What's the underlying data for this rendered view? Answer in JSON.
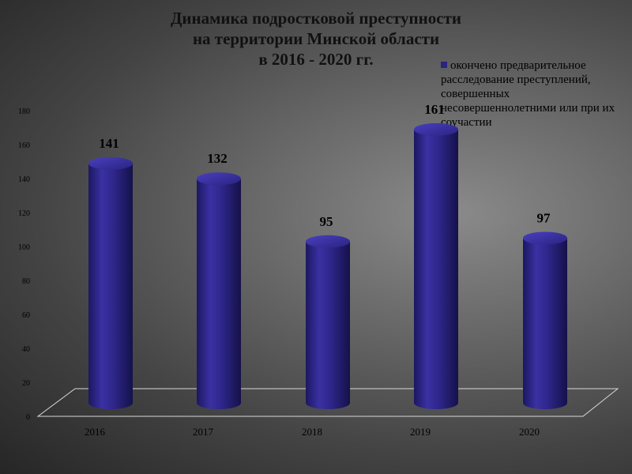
{
  "chart_data": {
    "type": "bar",
    "title_lines": [
      "Динамика подростковой преступности",
      "на территории Минской области",
      "в 2016 - 2020 гг."
    ],
    "categories": [
      "2016",
      "2017",
      "2018",
      "2019",
      "2020"
    ],
    "series": [
      {
        "name": "окончено предварительное расследование  преступлений, совершенных несовершеннолетними или при их соучастии",
        "values": [
          141,
          132,
          95,
          161,
          97
        ],
        "color": "#2b2480"
      }
    ],
    "y_ticks": [
      "0",
      "20",
      "40",
      "60",
      "80",
      "100",
      "120",
      "140",
      "160",
      "180"
    ],
    "ylim": [
      0,
      180
    ],
    "xlabel": "",
    "ylabel": "",
    "legend_position": "top-right",
    "grid": false,
    "style": "3d-cylinder"
  }
}
